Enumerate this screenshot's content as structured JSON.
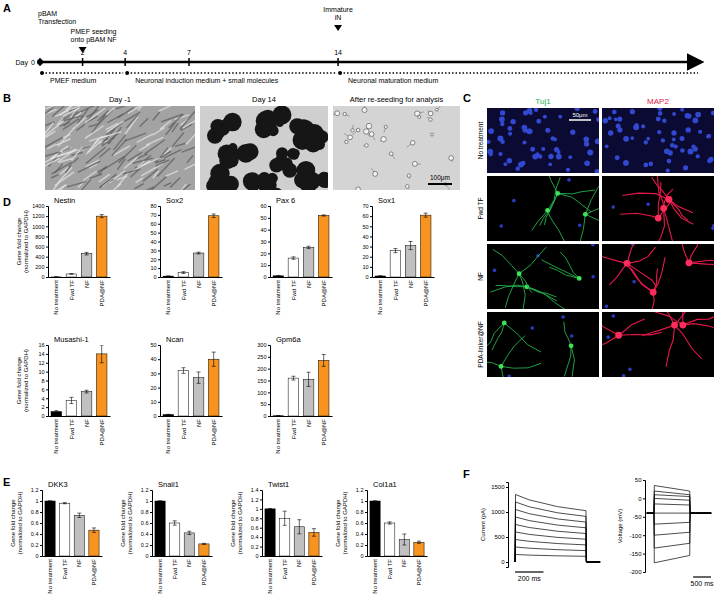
{
  "panel_labels": [
    "A",
    "B",
    "C",
    "D",
    "E",
    "F"
  ],
  "timeline": {
    "day_label": "Day",
    "xlim": [
      0,
      31
    ],
    "ticks": [
      0,
      2,
      4,
      7,
      14
    ],
    "events": [
      {
        "day": 0,
        "text": [
          "pBAM",
          "Transfection"
        ]
      },
      {
        "day": 2,
        "text": [
          "PMEF seeding",
          "onto pBAM NF"
        ]
      },
      {
        "day": 14,
        "text": [
          "Immature",
          "iN"
        ]
      }
    ],
    "media": [
      {
        "from": 0,
        "to": 4,
        "text": "PMEF medium"
      },
      {
        "from": 4,
        "to": 14,
        "text": "Neuronal induction medium + small molecules"
      },
      {
        "from": 14,
        "text": "Neuronal maturation medium"
      }
    ]
  },
  "panel_b": {
    "images": [
      {
        "title": "Day -1"
      },
      {
        "title": "Day 14"
      },
      {
        "title": "After re-seeding for analysis"
      }
    ],
    "scale_bar": "100μm"
  },
  "panel_c": {
    "columns": [
      "Tuj1",
      "MAP2"
    ],
    "rows": [
      "No treatment",
      "Fwd TF",
      "NF",
      "PDA-linker@NF"
    ],
    "scale_bar": "50μm"
  },
  "chart_data": [
    {
      "type": "bar",
      "title": "Nestin",
      "ylabel": [
        "Gene fold change",
        "(normalized to GAPDH)"
      ],
      "categories": [
        "No treatment",
        "Fwd TF",
        "NF",
        "PDA@NF"
      ],
      "values": [
        1,
        60,
        460,
        1200
      ],
      "error": [
        0,
        5,
        25,
        30
      ],
      "colors": [
        "#000000",
        "#ffffff",
        "#c0c0c0",
        "#f7931e"
      ],
      "ylim": [
        0,
        1400
      ],
      "yticks": [
        0,
        200,
        400,
        600,
        800,
        1000,
        1200,
        1400
      ]
    },
    {
      "type": "bar",
      "title": "Sox2",
      "categories": [
        "No treatment",
        "Fwd TF",
        "NF",
        "PDA@NF"
      ],
      "values": [
        1,
        5,
        27,
        69
      ],
      "error": [
        0,
        1,
        1,
        2
      ],
      "colors": [
        "#000000",
        "#ffffff",
        "#c0c0c0",
        "#f7931e"
      ],
      "ylim": [
        0,
        80
      ],
      "yticks": [
        0,
        10,
        20,
        30,
        40,
        50,
        60,
        70,
        80
      ]
    },
    {
      "type": "bar",
      "title": "Pax 6",
      "categories": [
        "No treatment",
        "Fwd TF",
        "NF",
        "PDA@NF"
      ],
      "values": [
        1,
        16,
        25,
        52
      ],
      "error": [
        0,
        1,
        1,
        0.5
      ],
      "colors": [
        "#000000",
        "#ffffff",
        "#c0c0c0",
        "#f7931e"
      ],
      "ylim": [
        0,
        60
      ],
      "yticks": [
        0,
        10,
        20,
        30,
        40,
        50,
        60
      ]
    },
    {
      "type": "bar",
      "title": "Sox1",
      "categories": [
        "No treatment",
        "Fwd TF",
        "NF",
        "PDA@NF"
      ],
      "values": [
        1,
        26,
        31,
        61
      ],
      "error": [
        0.2,
        2,
        4,
        2
      ],
      "colors": [
        "#000000",
        "#ffffff",
        "#c0c0c0",
        "#f7931e"
      ],
      "ylim": [
        0,
        70
      ],
      "yticks": [
        0,
        10,
        20,
        30,
        40,
        50,
        60,
        70
      ]
    },
    {
      "type": "bar",
      "title": "Musashi-1",
      "ylabel": [
        "Gene fold change",
        "(normalized to GAPDH)"
      ],
      "categories": [
        "No treatment",
        "Fwd TF",
        "NF",
        "PDA@NF"
      ],
      "values": [
        1,
        3.5,
        5.5,
        14
      ],
      "error": [
        0.2,
        0.7,
        0.3,
        2
      ],
      "colors": [
        "#000000",
        "#ffffff",
        "#c0c0c0",
        "#f7931e"
      ],
      "ylim": [
        0,
        16
      ],
      "yticks": [
        0,
        2,
        4,
        6,
        8,
        10,
        12,
        14,
        16
      ]
    },
    {
      "type": "bar",
      "title": "Ncan",
      "categories": [
        "No treatment",
        "Fwd TF",
        "NF",
        "PDA@NF"
      ],
      "values": [
        1,
        32,
        27,
        40
      ],
      "error": [
        0.2,
        2,
        4,
        5
      ],
      "colors": [
        "#000000",
        "#ffffff",
        "#c0c0c0",
        "#f7931e"
      ],
      "ylim": [
        0,
        50
      ],
      "yticks": [
        0,
        10,
        20,
        30,
        40,
        50
      ]
    },
    {
      "type": "bar",
      "title": "Gpm6a",
      "categories": [
        "No treatment",
        "Fwd TF",
        "NF",
        "PDA@NF"
      ],
      "values": [
        1,
        160,
        155,
        235
      ],
      "error": [
        0,
        8,
        30,
        25
      ],
      "colors": [
        "#000000",
        "#ffffff",
        "#c0c0c0",
        "#f7931e"
      ],
      "ylim": [
        0,
        300
      ],
      "yticks": [
        0,
        50,
        100,
        150,
        200,
        250,
        300
      ]
    },
    {
      "type": "bar",
      "title": "DKK3",
      "ylabel": [
        "Gene fold change",
        "(normalized to GAPDH)"
      ],
      "categories": [
        "No treatment",
        "Fwd TF",
        "NF",
        "PDA@NF"
      ],
      "values": [
        1,
        0.96,
        0.74,
        0.47
      ],
      "error": [
        0,
        0.01,
        0.04,
        0.04
      ],
      "colors": [
        "#000000",
        "#ffffff",
        "#c0c0c0",
        "#f7931e"
      ],
      "ylim": [
        0,
        1.2
      ],
      "yticks": [
        0,
        0.2,
        0.4,
        0.6,
        0.8,
        1,
        1.2
      ]
    },
    {
      "type": "bar",
      "title": "Snail1",
      "ylabel": [
        "Gene fold change",
        "(normalized to GAPDH)"
      ],
      "categories": [
        "No treatment",
        "Fwd TF",
        "NF",
        "PDA@NF"
      ],
      "values": [
        1,
        0.6,
        0.42,
        0.22
      ],
      "error": [
        0,
        0.04,
        0.03,
        0.01
      ],
      "colors": [
        "#000000",
        "#ffffff",
        "#c0c0c0",
        "#f7931e"
      ],
      "ylim": [
        0,
        1.2
      ],
      "yticks": [
        0,
        0.2,
        0.4,
        0.6,
        0.8,
        1,
        1.2
      ]
    },
    {
      "type": "bar",
      "title": "Twist1",
      "ylabel": [
        "Gene fold change",
        "(normalized to GAPDH)"
      ],
      "categories": [
        "No treatment",
        "Fwd TF",
        "NF",
        "PDA@NF"
      ],
      "values": [
        1,
        0.8,
        0.62,
        0.5
      ],
      "error": [
        0,
        0.15,
        0.15,
        0.08
      ],
      "colors": [
        "#000000",
        "#ffffff",
        "#c0c0c0",
        "#f7931e"
      ],
      "ylim": [
        0,
        1.4
      ],
      "yticks": [
        0,
        0.2,
        0.4,
        0.6,
        0.8,
        1,
        1.2,
        1.4
      ]
    },
    {
      "type": "bar",
      "title": "Col1a1",
      "ylabel": [
        "Gene fold change",
        "(normalized to GAPDH)"
      ],
      "categories": [
        "No treatment",
        "Fwd TF",
        "NF",
        "PDA@NF"
      ],
      "values": [
        1,
        0.6,
        0.3,
        0.25
      ],
      "error": [
        0,
        0.02,
        0.1,
        0.02
      ],
      "colors": [
        "#000000",
        "#ffffff",
        "#c0c0c0",
        "#f7931e"
      ],
      "ylim": [
        0,
        1.2
      ],
      "yticks": [
        0,
        0.2,
        0.4,
        0.6,
        0.8,
        1,
        1.2
      ]
    },
    {
      "type": "line",
      "ylabel": "Current (pA)",
      "color": "#000000",
      "tick_labels": "y",
      "xlim": [
        -50,
        620
      ],
      "ylim": [
        -100,
        1600
      ],
      "yticks": [
        0,
        500,
        1000,
        1500
      ],
      "scale_bar": {
        "value": 200,
        "label": "200 ms"
      },
      "x": [
        0,
        3,
        100,
        300,
        500,
        503,
        600
      ],
      "series": [
        {
          "values": [
            0,
            150,
            138,
            123,
            114,
            0,
            0
          ]
        },
        {
          "values": [
            0,
            300,
            276,
            246,
            228,
            0,
            0
          ]
        },
        {
          "values": [
            0,
            450,
            414,
            369,
            342,
            0,
            0
          ]
        },
        {
          "values": [
            0,
            600,
            552,
            492,
            456,
            0,
            0
          ]
        },
        {
          "values": [
            0,
            750,
            690,
            615,
            570,
            0,
            0
          ]
        },
        {
          "values": [
            0,
            900,
            828,
            738,
            684,
            0,
            0
          ]
        },
        {
          "values": [
            0,
            1050,
            966,
            861,
            798,
            0,
            0
          ]
        },
        {
          "values": [
            0,
            1200,
            1104,
            984,
            912,
            0,
            0
          ]
        },
        {
          "values": [
            0,
            1350,
            1242,
            1107,
            1026,
            0,
            0
          ]
        }
      ]
    },
    {
      "type": "line",
      "ylabel": "Voltage (mV)",
      "color": "#000000",
      "tick_labels": "y",
      "xlim": [
        -50,
        1850
      ],
      "ylim": [
        -200,
        50
      ],
      "yticks": [
        -200,
        -150,
        -100,
        -50,
        0,
        50
      ],
      "scale_bar": {
        "value": 500,
        "label": "500 ms"
      },
      "x": [
        0,
        200,
        210,
        1200,
        1210,
        1800
      ],
      "series": [
        {
          "values": [
            -40,
            -40,
            35,
            20,
            -40,
            -40
          ]
        },
        {
          "values": [
            -40,
            -40,
            20,
            10,
            -40,
            -40
          ]
        },
        {
          "values": [
            -40,
            -40,
            10,
            5,
            -40,
            -40
          ]
        },
        {
          "values": [
            -40,
            -40,
            0,
            -5,
            -40,
            -40
          ]
        },
        {
          "values": [
            -40,
            -40,
            -15,
            -18,
            -40,
            -40
          ]
        },
        {
          "values": [
            -40,
            -40,
            -40,
            -40,
            -40,
            -40
          ]
        },
        {
          "values": [
            -40,
            -40,
            -70,
            -65,
            -40,
            -40
          ]
        },
        {
          "values": [
            -40,
            -40,
            -100,
            -92,
            -40,
            -40
          ]
        },
        {
          "values": [
            -40,
            -40,
            -135,
            -122,
            -40,
            -40
          ]
        },
        {
          "values": [
            -40,
            -40,
            -175,
            -155,
            -40,
            -40
          ]
        }
      ]
    }
  ]
}
